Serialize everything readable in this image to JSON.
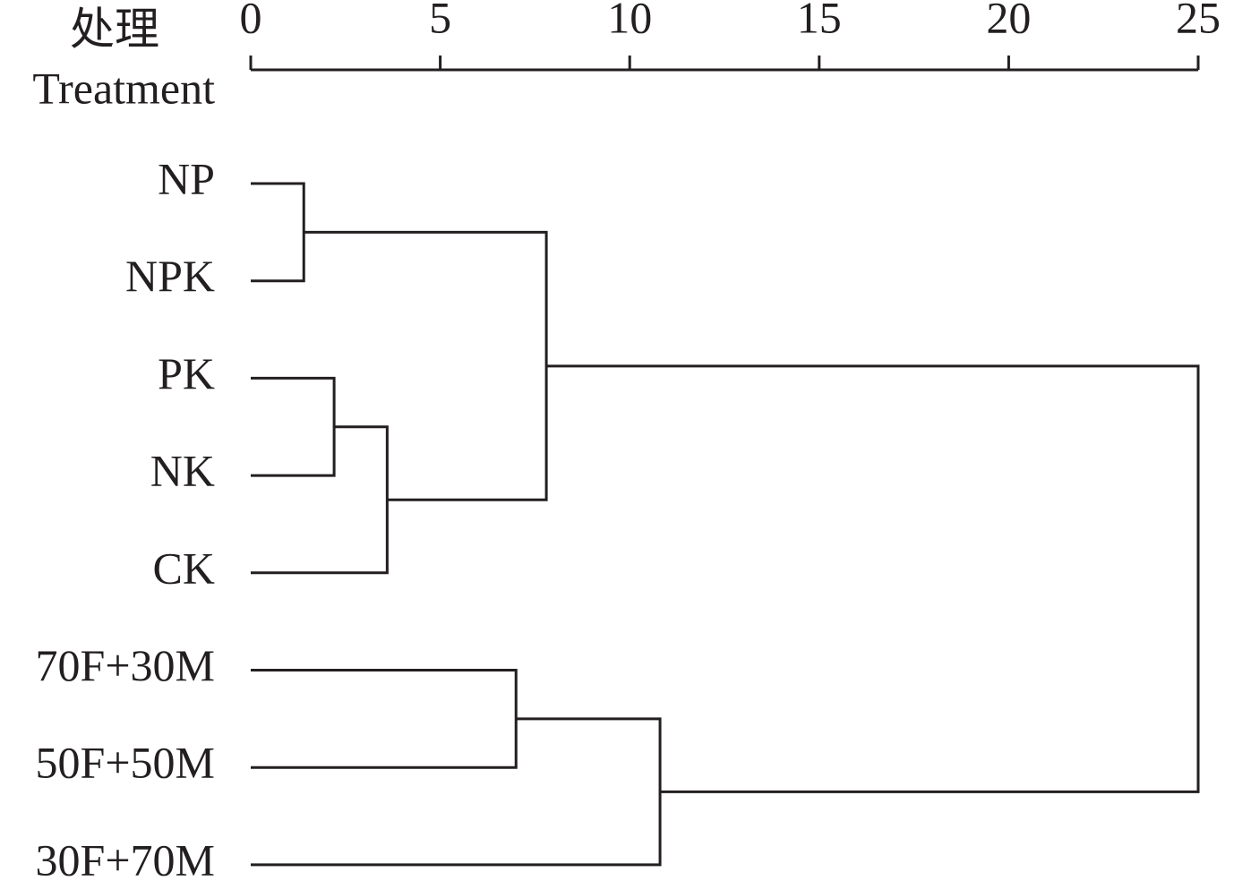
{
  "chart_data": {
    "type": "dendrogram",
    "ylabel": [
      "处理",
      "Treatment"
    ],
    "leaves": [
      "NP",
      "NPK",
      "PK",
      "NK",
      "CK",
      "70F+30M",
      "50F+50M",
      "30F+70M"
    ],
    "merges": [
      {
        "children": [
          0,
          1
        ],
        "height": 1.4
      },
      {
        "children": [
          2,
          3
        ],
        "height": 2.2
      },
      {
        "children": [
          9,
          4
        ],
        "height": 3.6
      },
      {
        "children": [
          5,
          6
        ],
        "height": 7.0
      },
      {
        "children": [
          8,
          10
        ],
        "height": 7.8
      },
      {
        "children": [
          11,
          7
        ],
        "height": 10.8
      },
      {
        "children": [
          12,
          13
        ],
        "height": 25
      }
    ],
    "xlim": [
      0,
      25
    ],
    "xticks": [
      0,
      5,
      10,
      15,
      20,
      25
    ]
  }
}
